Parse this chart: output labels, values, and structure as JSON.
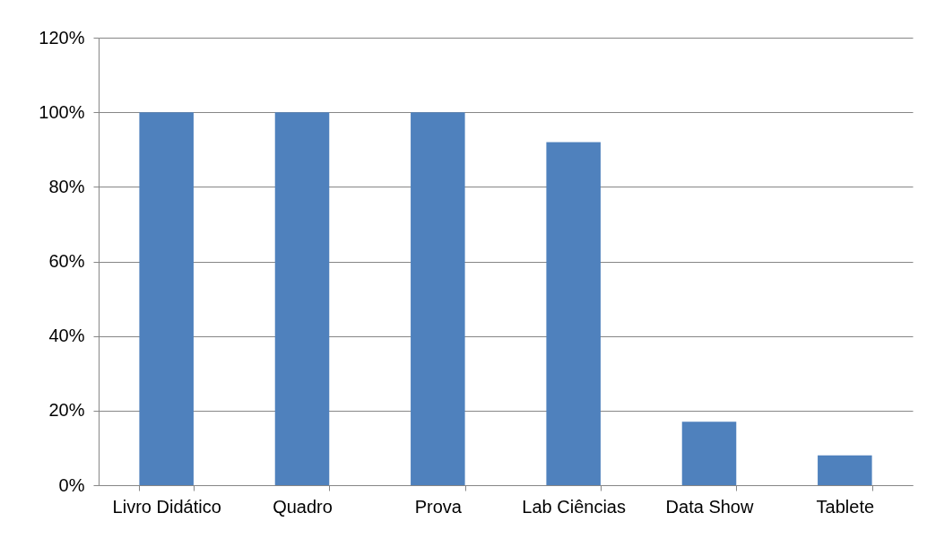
{
  "chart_data": {
    "type": "bar",
    "categories": [
      "Livro Didático",
      "Quadro",
      "Prova",
      "Lab Ciências",
      "Data Show",
      "Tablete"
    ],
    "values": [
      100,
      100,
      100,
      92,
      17,
      8
    ],
    "color": "#4f81bd",
    "ylim": [
      0,
      120
    ],
    "yticks": [
      {
        "value": 0,
        "label": "0%"
      },
      {
        "value": 20,
        "label": "20%"
      },
      {
        "value": 40,
        "label": "40%"
      },
      {
        "value": 60,
        "label": "60%"
      },
      {
        "value": 80,
        "label": "80%"
      },
      {
        "value": 100,
        "label": "100%"
      },
      {
        "value": 120,
        "label": "120%"
      }
    ],
    "grid": "y"
  }
}
